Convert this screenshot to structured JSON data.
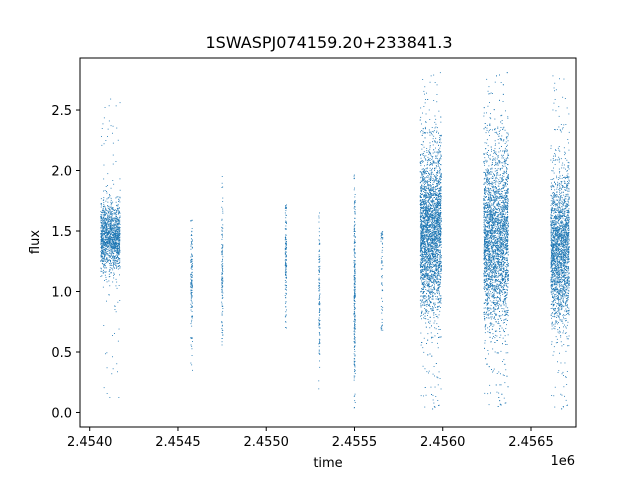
{
  "chart_data": {
    "type": "scatter",
    "title": "1SWASPJ074159.20+233841.3",
    "xlabel": "time",
    "ylabel": "flux",
    "x_offset_label": "1e6",
    "x_ticks": [
      2454000,
      2454500,
      2455000,
      2455500,
      2456000,
      2456500
    ],
    "x_tick_labels": [
      "2.4540",
      "2.4545",
      "2.4550",
      "2.4555",
      "2.4560",
      "2.4565"
    ],
    "y_ticks": [
      0.0,
      0.5,
      1.0,
      1.5,
      2.0,
      2.5
    ],
    "y_tick_labels": [
      "0.0",
      "0.5",
      "1.0",
      "1.5",
      "2.0",
      "2.5"
    ],
    "xlim": [
      2453945,
      2456755
    ],
    "ylim": [
      -0.12,
      2.93
    ],
    "grid": false,
    "marker_color": "#1f77b4",
    "series": [
      {
        "clusters": [
          {
            "x": [
              2454060,
              2454170
            ],
            "center": 1.45,
            "spread": 0.14,
            "min": 0.12,
            "max": 2.6,
            "n": 1400
          },
          {
            "x": [
              2454570,
              2454580
            ],
            "center": 1.05,
            "spread": 0.25,
            "min": 0.08,
            "max": 1.6,
            "n": 140
          },
          {
            "x": [
              2454745,
              2454752
            ],
            "center": 1.15,
            "spread": 0.3,
            "min": 0.5,
            "max": 2.0,
            "n": 120
          },
          {
            "x": [
              2455105,
              2455113
            ],
            "center": 1.3,
            "spread": 0.25,
            "min": 0.68,
            "max": 1.72,
            "n": 140
          },
          {
            "x": [
              2455295,
              2455302
            ],
            "center": 1.0,
            "spread": 0.3,
            "min": 0.12,
            "max": 1.68,
            "n": 120
          },
          {
            "x": [
              2455495,
              2455502
            ],
            "center": 1.0,
            "spread": 0.4,
            "min": 0.04,
            "max": 1.98,
            "n": 260
          },
          {
            "x": [
              2455648,
              2455658
            ],
            "center": 1.2,
            "spread": 0.3,
            "min": 0.68,
            "max": 1.5,
            "n": 60
          },
          {
            "x": [
              2455870,
              2455990
            ],
            "center": 1.5,
            "spread": 0.33,
            "min": 0.0,
            "max": 2.82,
            "n": 3200
          },
          {
            "x": [
              2456230,
              2456370
            ],
            "center": 1.45,
            "spread": 0.36,
            "min": 0.02,
            "max": 2.82,
            "n": 3200
          },
          {
            "x": [
              2456610,
              2456715
            ],
            "center": 1.35,
            "spread": 0.3,
            "min": 0.0,
            "max": 2.85,
            "n": 2200
          }
        ]
      }
    ]
  }
}
